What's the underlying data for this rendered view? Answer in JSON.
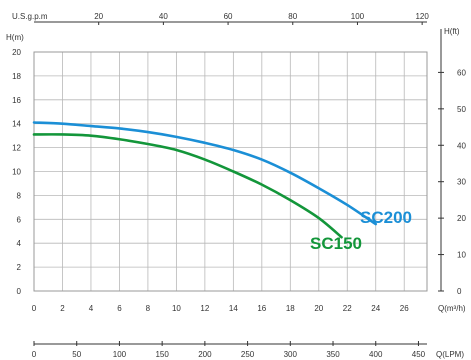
{
  "chart_data": {
    "type": "line",
    "title": "",
    "axes": {
      "y_left": {
        "label": "H(m)",
        "range": [
          0,
          20
        ],
        "ticks": [
          0,
          2,
          4,
          6,
          8,
          10,
          12,
          14,
          16,
          18,
          20
        ]
      },
      "y_right": {
        "label": "H(ft)",
        "range": [
          0,
          65.6
        ],
        "ticks": [
          0,
          10,
          20,
          30,
          40,
          50,
          60
        ]
      },
      "x_bottom_1": {
        "label": "Q(m³/h)",
        "range": [
          0,
          27.6
        ],
        "ticks": [
          0,
          2,
          4,
          6,
          8,
          10,
          12,
          14,
          16,
          18,
          20,
          22,
          24,
          26
        ]
      },
      "x_bottom_2": {
        "label": "Q(LPM)",
        "range": [
          0,
          460
        ],
        "ticks": [
          0,
          50,
          100,
          150,
          200,
          250,
          300,
          350,
          400,
          450
        ]
      },
      "x_top": {
        "label": "U.S.g.p.m",
        "range": [
          0,
          121.5
        ],
        "ticks": [
          20,
          40,
          60,
          80,
          100,
          120
        ]
      }
    },
    "grid": true,
    "series": [
      {
        "name": "SC200",
        "color": "#1b8fd6",
        "x_unit": "m³/h",
        "points": [
          [
            0,
            14.1
          ],
          [
            2,
            14.0
          ],
          [
            4,
            13.8
          ],
          [
            6,
            13.6
          ],
          [
            8,
            13.3
          ],
          [
            10,
            12.9
          ],
          [
            12,
            12.4
          ],
          [
            14,
            11.8
          ],
          [
            16,
            11.0
          ],
          [
            18,
            9.9
          ],
          [
            20,
            8.6
          ],
          [
            22,
            7.2
          ],
          [
            24,
            5.6
          ]
        ]
      },
      {
        "name": "SC150",
        "color": "#13963a",
        "x_unit": "m³/h",
        "points": [
          [
            0,
            13.1
          ],
          [
            2,
            13.1
          ],
          [
            4,
            13.0
          ],
          [
            6,
            12.7
          ],
          [
            8,
            12.3
          ],
          [
            10,
            11.8
          ],
          [
            12,
            11.0
          ],
          [
            14,
            10.0
          ],
          [
            16,
            8.9
          ],
          [
            18,
            7.6
          ],
          [
            20,
            6.1
          ],
          [
            21.6,
            4.5
          ]
        ]
      }
    ]
  }
}
